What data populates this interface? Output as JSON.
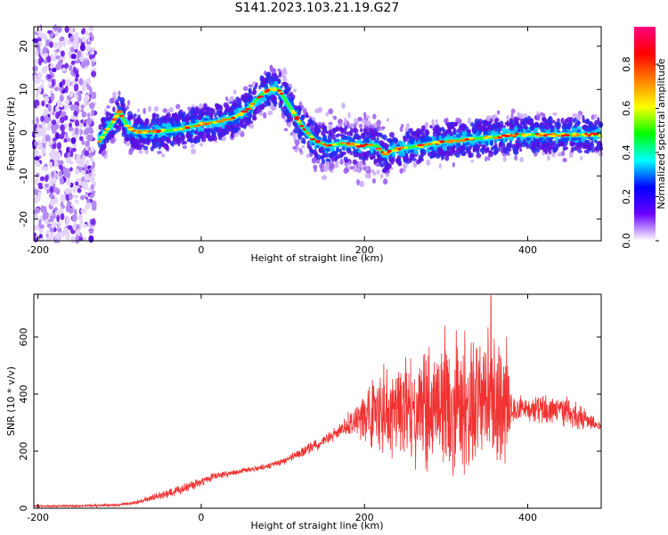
{
  "title": "S141.2023.103.21.19.G27",
  "colors": {
    "snr_line": "#f03232",
    "frame": "#000000"
  },
  "chart_data": [
    {
      "type": "heatmap",
      "xlabel": "Height of straight line (km)",
      "ylabel": "Frequency (Hz)",
      "xlim": [
        -205,
        490
      ],
      "ylim": [
        -25,
        24.5
      ],
      "xticks": [
        "-200",
        "0",
        "200",
        "400"
      ],
      "xtick_values": [
        -200,
        0,
        200,
        400
      ],
      "yticks": [
        "-20",
        "-10",
        "0",
        "10",
        "20"
      ],
      "ytick_values": [
        -20,
        -10,
        0,
        10,
        20
      ],
      "colorbar": {
        "label": "Normalized spectral amplitude",
        "range": [
          0,
          0.97
        ],
        "ticks": [
          "0.0",
          "0.2",
          "0.4",
          "0.6",
          "0.8"
        ],
        "tick_values": [
          0,
          0.2,
          0.4,
          0.6,
          0.8
        ],
        "colormap": [
          "#ffffff",
          "#6a00ff",
          "#0000ff",
          "#00ffff",
          "#00ff00",
          "#ffff00",
          "#ff8000",
          "#ff0000",
          "#ff0080"
        ]
      },
      "noise_region": {
        "x_range": [
          -205,
          -130
        ]
      },
      "ridge": {
        "x": [
          -125,
          -110,
          -100,
          -95,
          -88,
          -80,
          -60,
          -40,
          -20,
          0,
          20,
          40,
          55,
          65,
          75,
          85,
          95,
          105,
          115,
          125,
          140,
          155,
          175,
          195,
          215,
          225,
          235,
          250,
          270,
          300,
          330,
          360,
          390,
          420,
          450,
          490
        ],
        "y": [
          -2,
          2,
          5,
          3,
          1,
          0.2,
          0.2,
          0.5,
          1,
          2,
          2.5,
          3.5,
          5,
          7,
          9,
          10,
          10,
          7,
          4,
          1,
          -2,
          -3,
          -2.5,
          -3,
          -3,
          -5,
          -4,
          -3.5,
          -3,
          -2,
          -1.5,
          -1,
          -0.5,
          -0.5,
          -0.5,
          -0.5
        ]
      }
    },
    {
      "type": "line",
      "xlabel": "Height of straight line (km)",
      "ylabel": "SNR (10 * v/v)",
      "xlim": [
        -205,
        490
      ],
      "ylim": [
        0,
        750
      ],
      "xticks": [
        "-200",
        "0",
        "200",
        "400"
      ],
      "xtick_values": [
        -200,
        0,
        200,
        400
      ],
      "yticks": [
        "0",
        "200",
        "400",
        "600"
      ],
      "ytick_values": [
        0,
        200,
        400,
        600
      ],
      "series": [
        {
          "envelope_x": [
            -205,
            -150,
            -100,
            -80,
            -50,
            -20,
            0,
            20,
            50,
            80,
            100,
            120,
            150,
            170,
            190,
            200,
            210,
            230,
            250,
            270,
            300,
            320,
            340,
            360,
            375,
            380,
            400,
            420,
            450,
            470,
            490
          ],
          "envelope_center": [
            8,
            8,
            12,
            20,
            45,
            70,
            95,
            115,
            130,
            145,
            165,
            190,
            235,
            275,
            310,
            320,
            330,
            340,
            350,
            355,
            360,
            365,
            375,
            380,
            380,
            350,
            345,
            345,
            335,
            315,
            285
          ],
          "envelope_halfwidth": [
            5,
            5,
            6,
            8,
            15,
            20,
            20,
            15,
            12,
            12,
            15,
            20,
            25,
            30,
            70,
            110,
            150,
            190,
            230,
            260,
            290,
            300,
            290,
            270,
            250,
            50,
            50,
            60,
            65,
            40,
            15
          ],
          "peak_value": 745
        }
      ]
    }
  ]
}
